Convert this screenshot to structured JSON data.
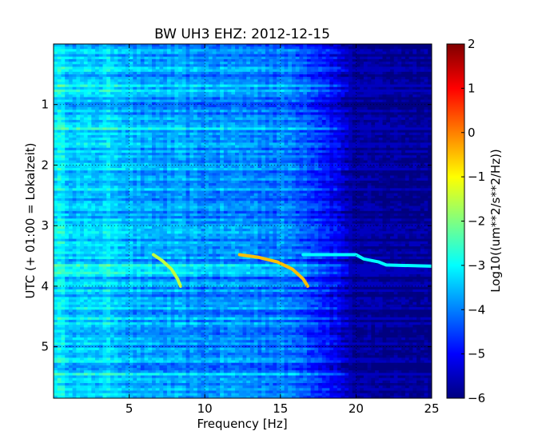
{
  "chart_data": {
    "type": "heatmap",
    "title": "BW UH3 EHZ: 2012-12-15",
    "xlabel": "Frequency [Hz]",
    "ylabel": "UTC (+ 01:00 = Lokalzeit)",
    "xlim": [
      0,
      25
    ],
    "ylim": [
      5.85,
      0
    ],
    "x_ticks": [
      5,
      10,
      15,
      20,
      25
    ],
    "x_tick_labels": [
      "5",
      "10",
      "15",
      "20",
      "25"
    ],
    "y_ticks": [
      1,
      2,
      3,
      4,
      5
    ],
    "y_tick_labels": [
      "1",
      "2",
      "3",
      "4",
      "5"
    ],
    "grid": true,
    "colormap": "jet",
    "colorbar": {
      "label": "Log10((um**2/s**2/Hz))",
      "range": [
        -6,
        2
      ],
      "ticks": [
        2,
        1,
        0,
        -1,
        -2,
        -3,
        -4,
        -5,
        -6
      ],
      "tick_labels": [
        "2",
        "1",
        "0",
        "−1",
        "−2",
        "−3",
        "−4",
        "−5",
        "−6"
      ]
    },
    "value_profile_by_frequency": {
      "frequency_hz": [
        0,
        1,
        2,
        3,
        4,
        5,
        6,
        8,
        10,
        12,
        14,
        16,
        17,
        18,
        19,
        20,
        25
      ],
      "log10_psd": [
        -3.0,
        -3.3,
        -3.5,
        -3.4,
        -3.3,
        -3.6,
        -3.8,
        -3.8,
        -3.9,
        -3.9,
        -4.0,
        -4.1,
        -4.4,
        -4.8,
        -5.3,
        -5.8,
        -5.9
      ]
    },
    "line_features": [
      {
        "x": [
          6.6,
          7.2,
          7.8,
          8.2,
          8.4
        ],
        "y": [
          3.48,
          3.58,
          3.72,
          3.88,
          4.0
        ],
        "value": -1.5
      },
      {
        "x": [
          12.3,
          13.5,
          14.8,
          15.8,
          16.5,
          16.8
        ],
        "y": [
          3.48,
          3.52,
          3.6,
          3.72,
          3.88,
          4.0
        ],
        "value": -0.5
      },
      {
        "x": [
          16.5,
          18.5,
          20.0,
          20.5,
          21.5,
          22.0,
          25.0
        ],
        "y": [
          3.48,
          3.48,
          3.48,
          3.55,
          3.6,
          3.65,
          3.67
        ],
        "value": -3.0
      }
    ]
  }
}
